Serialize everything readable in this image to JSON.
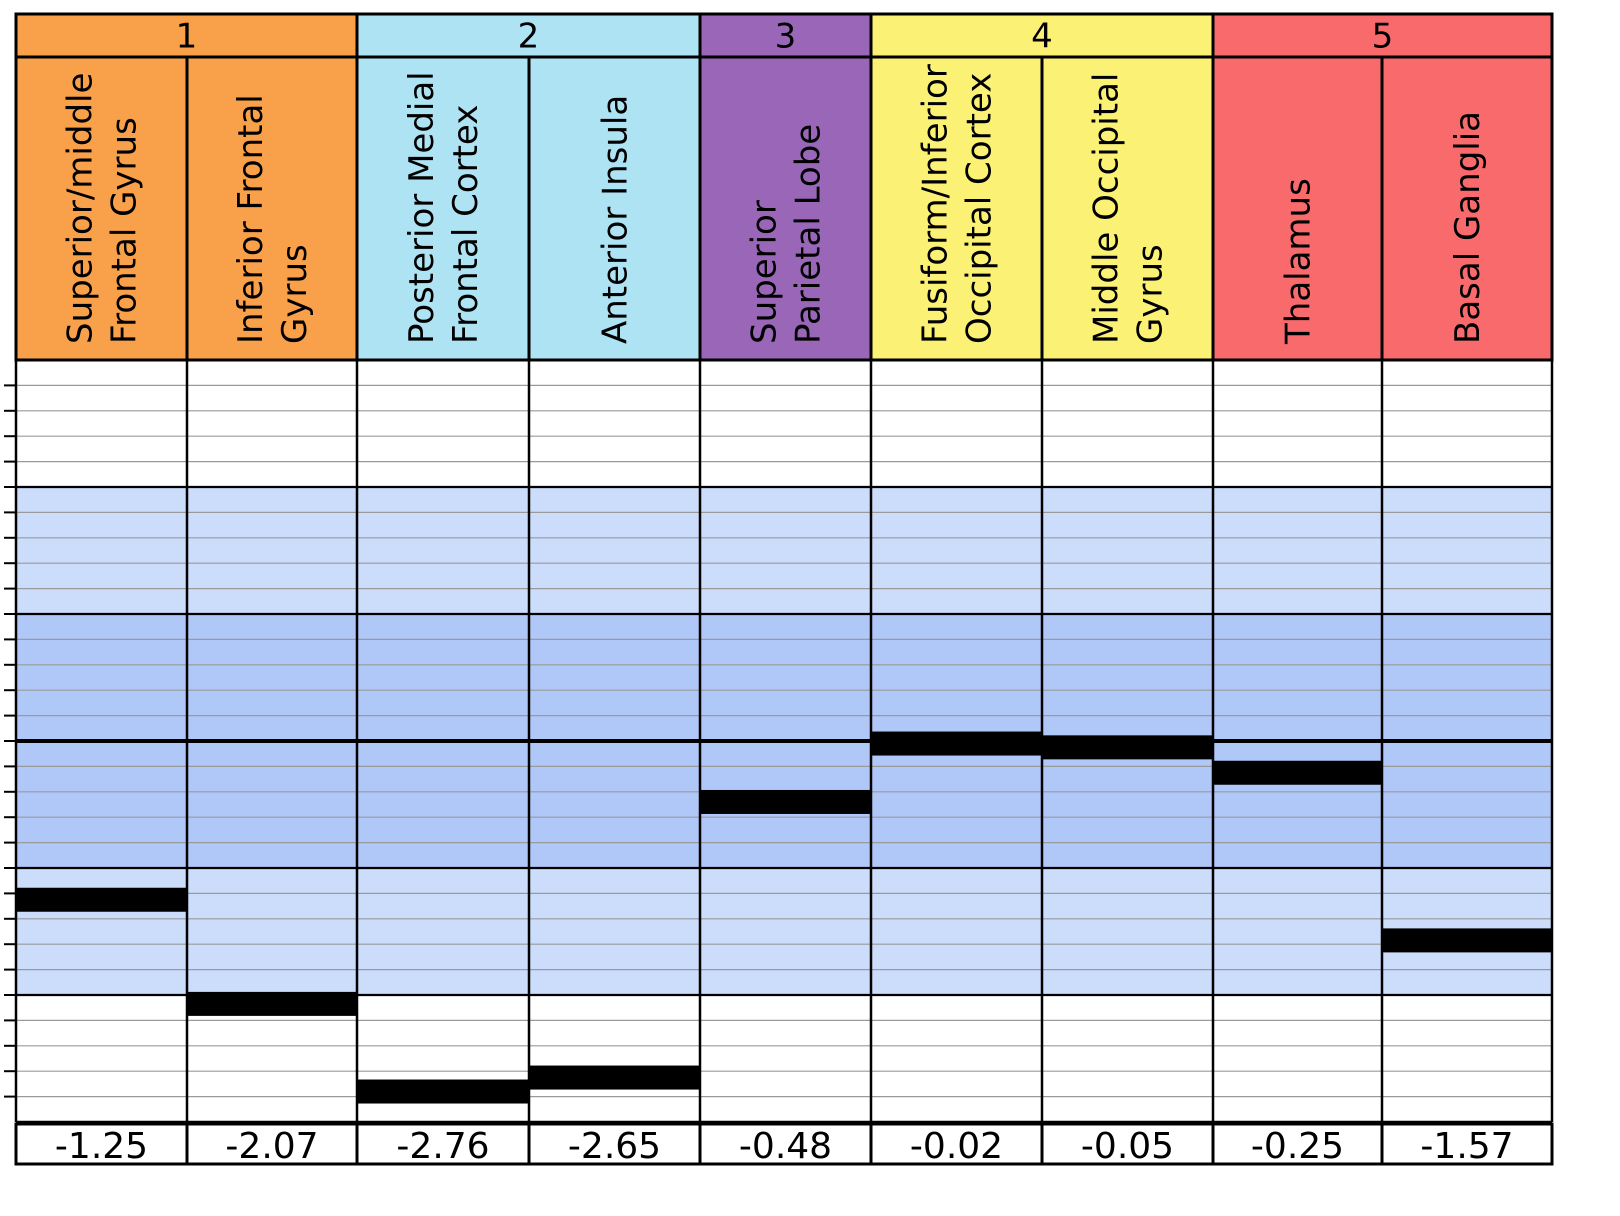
{
  "chart_data": {
    "type": "bar",
    "groups": [
      {
        "label": "1",
        "color": "#F9A04A",
        "columns": [
          0,
          1
        ]
      },
      {
        "label": "2",
        "color": "#AEE3F4",
        "columns": [
          2,
          3
        ]
      },
      {
        "label": "3",
        "color": "#9966B8",
        "columns": [
          4
        ]
      },
      {
        "label": "4",
        "color": "#FBF275",
        "columns": [
          5,
          6
        ]
      },
      {
        "label": "5",
        "color": "#F86A6C",
        "columns": [
          7,
          8
        ]
      }
    ],
    "categories": [
      [
        "Superior/middle",
        "Frontal Gyrus"
      ],
      [
        "Inferior Frontal",
        "Gyrus"
      ],
      [
        "Posterior Medial",
        "Frontal Cortex"
      ],
      [
        "Anterior Insula"
      ],
      [
        "Superior",
        "Parietal Lobe"
      ],
      [
        "Fusiform/Inferior",
        "Occipital Cortex"
      ],
      [
        "Middle Occipital",
        "Gyrus"
      ],
      [
        "Thalamus"
      ],
      [
        "Basal Ganglia"
      ]
    ],
    "values": [
      -1.25,
      -2.07,
      -2.76,
      -2.65,
      -0.48,
      -0.02,
      -0.05,
      -0.25,
      -1.57
    ],
    "value_labels": [
      "-1.25",
      "-2.07",
      "-2.76",
      "-2.65",
      "-0.48",
      "-0.02",
      "-0.05",
      "-0.25",
      "-1.57"
    ],
    "ylim": [
      -3,
      3
    ],
    "bands": [
      {
        "from": 2,
        "to": 3,
        "color": "#ffffff"
      },
      {
        "from": 1,
        "to": 2,
        "color": "#CCDCFB"
      },
      {
        "from": 0,
        "to": 1,
        "color": "#AFC8F8"
      },
      {
        "from": -1,
        "to": 0,
        "color": "#AFC8F8"
      },
      {
        "from": -2,
        "to": -1,
        "color": "#CCDCFB"
      },
      {
        "from": -3,
        "to": -2,
        "color": "#ffffff"
      }
    ],
    "minor_step": 0.2,
    "grid": true
  }
}
